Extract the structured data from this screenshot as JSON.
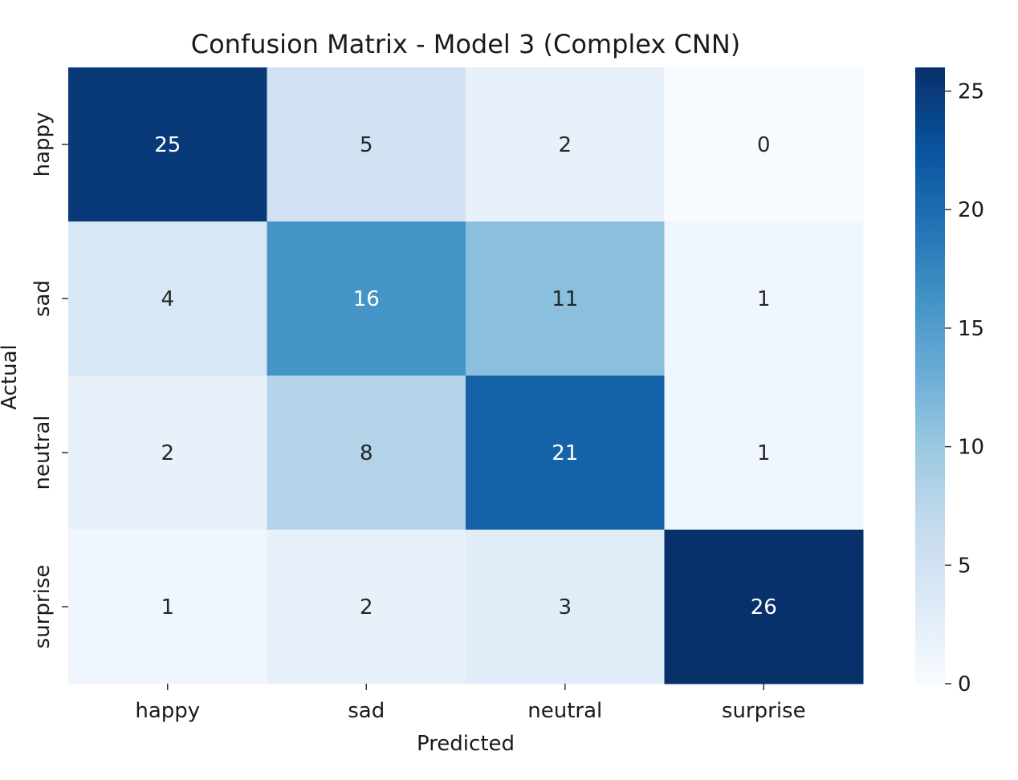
{
  "chart_data": {
    "type": "heatmap",
    "title": "Confusion Matrix - Model 3 (Complex CNN)",
    "xlabel": "Predicted",
    "ylabel": "Actual",
    "x_categories": [
      "happy",
      "sad",
      "neutral",
      "surprise"
    ],
    "y_categories": [
      "happy",
      "sad",
      "neutral",
      "surprise"
    ],
    "values": [
      [
        25,
        5,
        2,
        0
      ],
      [
        4,
        16,
        11,
        1
      ],
      [
        2,
        8,
        21,
        1
      ],
      [
        1,
        2,
        3,
        26
      ]
    ],
    "colormap": "Blues",
    "vmin": 0,
    "vmax": 26,
    "colorbar_ticks": [
      0,
      5,
      10,
      15,
      20,
      25
    ]
  }
}
